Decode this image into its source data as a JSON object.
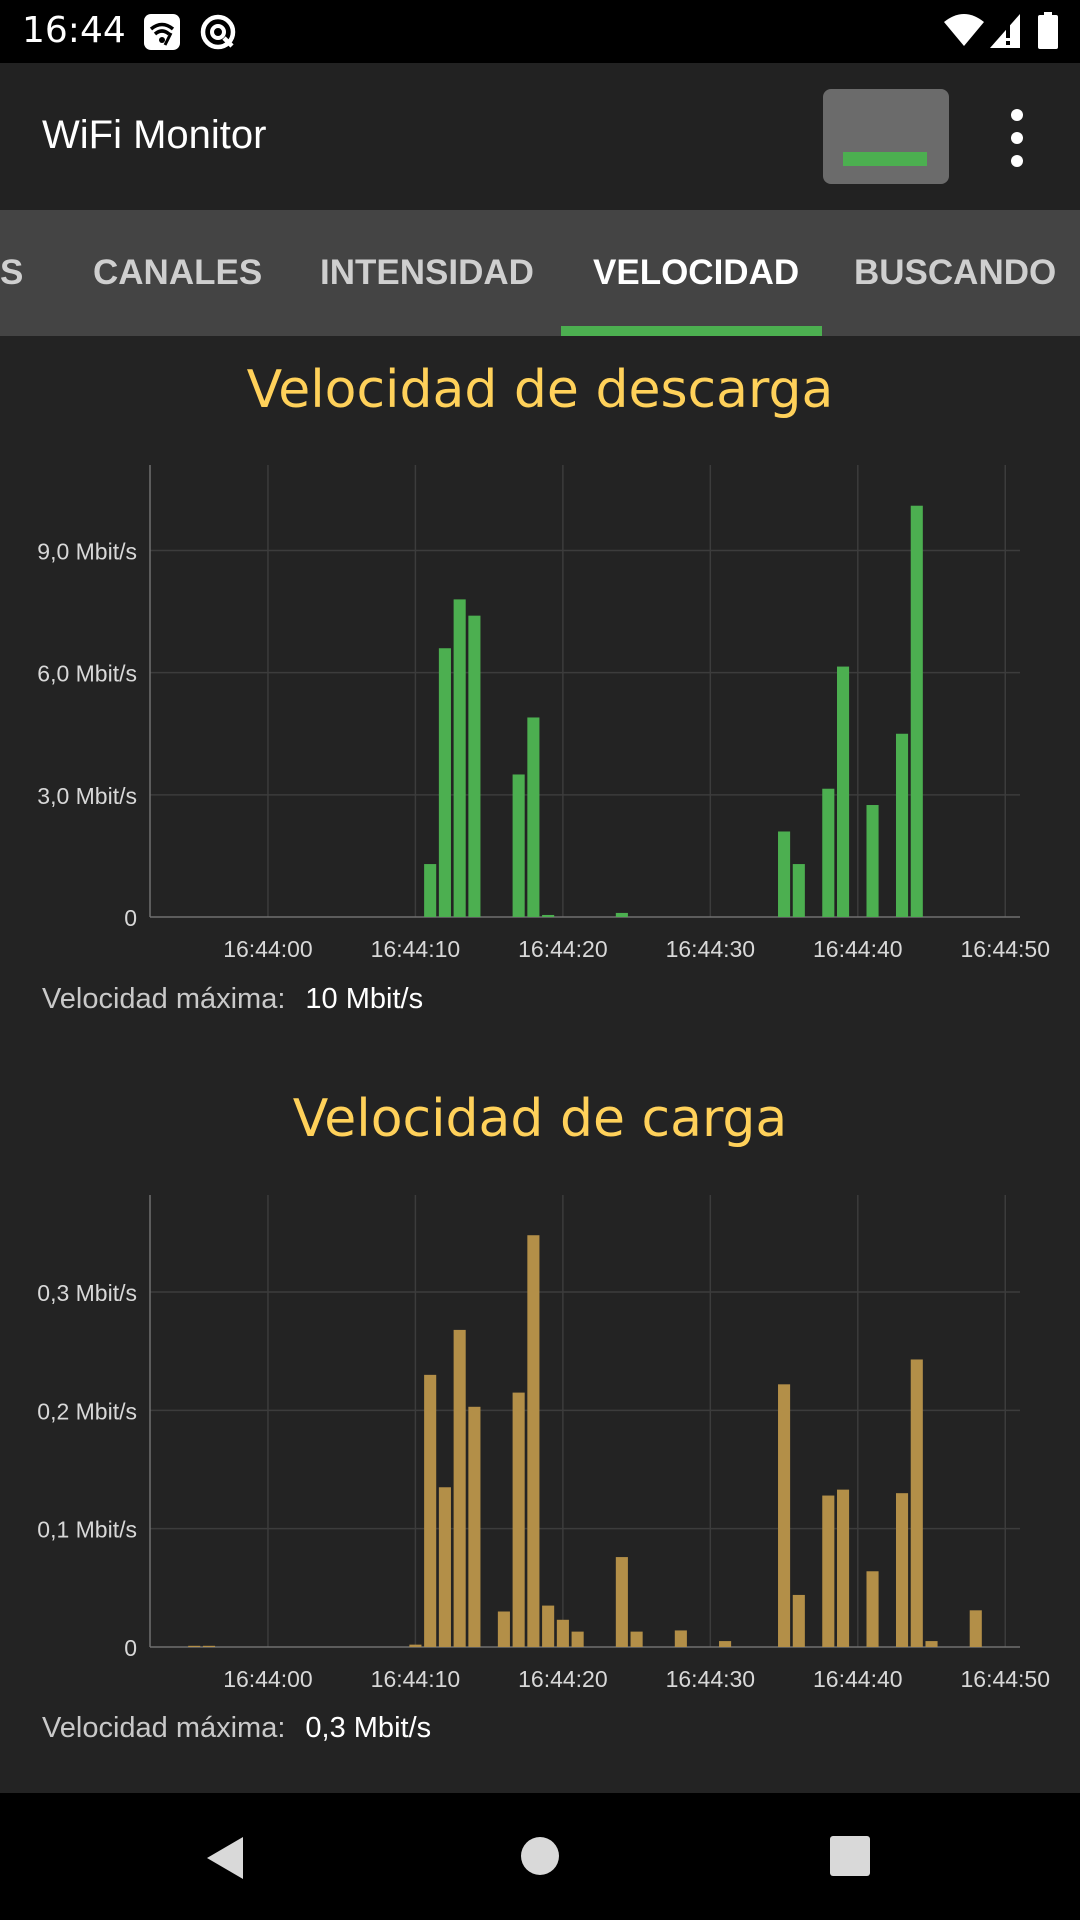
{
  "status_bar": {
    "time": "16:44",
    "icons": [
      "wifi-settings-icon",
      "at-sign-icon",
      "wifi-signal-icon",
      "cell-signal-icon",
      "battery-icon"
    ]
  },
  "app_bar": {
    "title": "WiFi Monitor",
    "battery_button_icon": "battery-widget-icon",
    "battery_level": 0.85,
    "menu_icon": "more-vert-icon"
  },
  "tabs": [
    {
      "label": "S",
      "active": false
    },
    {
      "label": "CANALES",
      "active": false
    },
    {
      "label": "INTENSIDAD",
      "active": false
    },
    {
      "label": "VELOCIDAD",
      "active": true
    },
    {
      "label": "BUSCANDO",
      "active": false
    }
  ],
  "colors": {
    "accent": "#4caf50",
    "title": "#ffd15a",
    "download_bar": "#4caf50",
    "upload_bar": "#b38f48"
  },
  "download": {
    "title": "Velocidad de descarga",
    "max_label": "Velocidad máxima:",
    "max_value": "10 Mbit/s"
  },
  "upload": {
    "title": "Velocidad de carga",
    "max_label": "Velocidad máxima:",
    "max_value": "0,3 Mbit/s"
  },
  "nav_bar": {
    "icons": [
      "back-icon",
      "home-icon",
      "recents-icon"
    ]
  },
  "chart_data": [
    {
      "type": "bar",
      "title": "Velocidad de descarga",
      "xlabel": "",
      "ylabel": "",
      "x_unit": "seconds past 16:43:52",
      "x_ticks": [
        "16:44:00",
        "16:44:10",
        "16:44:20",
        "16:44:30",
        "16:44:40",
        "16:44:50"
      ],
      "y_ticks": [
        "0",
        "3,0 Mbit/s",
        "6,0 Mbit/s",
        "9,0 Mbit/s"
      ],
      "y_tick_values": [
        0,
        3,
        6,
        9
      ],
      "ylim": [
        0,
        11.1
      ],
      "grid": true,
      "x": [
        "16:44:11",
        "16:44:12",
        "16:44:13",
        "16:44:14",
        "16:44:17",
        "16:44:18",
        "16:44:19",
        "16:44:24",
        "16:44:35",
        "16:44:36",
        "16:44:38",
        "16:44:39",
        "16:44:41",
        "16:44:43",
        "16:44:44"
      ],
      "values": [
        1.3,
        6.6,
        7.8,
        7.4,
        3.5,
        4.9,
        0.05,
        0.1,
        2.1,
        1.3,
        3.15,
        6.15,
        2.75,
        4.5,
        10.1
      ]
    },
    {
      "type": "bar",
      "title": "Velocidad de carga",
      "xlabel": "",
      "ylabel": "",
      "x_ticks": [
        "16:44:00",
        "16:44:10",
        "16:44:20",
        "16:44:30",
        "16:44:40",
        "16:44:50"
      ],
      "y_ticks": [
        "0",
        "0,1 Mbit/s",
        "0,2 Mbit/s",
        "0,3 Mbit/s"
      ],
      "y_tick_values": [
        0,
        0.1,
        0.2,
        0.3
      ],
      "ylim": [
        0,
        0.382
      ],
      "grid": true,
      "x": [
        "16:43:55",
        "16:43:56",
        "16:44:10",
        "16:44:11",
        "16:44:12",
        "16:44:13",
        "16:44:14",
        "16:44:16",
        "16:44:17",
        "16:44:18",
        "16:44:19",
        "16:44:20",
        "16:44:21",
        "16:44:24",
        "16:44:25",
        "16:44:28",
        "16:44:31",
        "16:44:35",
        "16:44:36",
        "16:44:38",
        "16:44:39",
        "16:44:41",
        "16:44:43",
        "16:44:44",
        "16:44:45",
        "16:44:48"
      ],
      "values": [
        0.001,
        0.001,
        0.002,
        0.23,
        0.135,
        0.268,
        0.203,
        0.03,
        0.215,
        0.348,
        0.035,
        0.023,
        0.013,
        0.076,
        0.013,
        0.014,
        0.005,
        0.222,
        0.044,
        0.128,
        0.133,
        0.064,
        0.13,
        0.243,
        0.005,
        0.031
      ]
    }
  ]
}
